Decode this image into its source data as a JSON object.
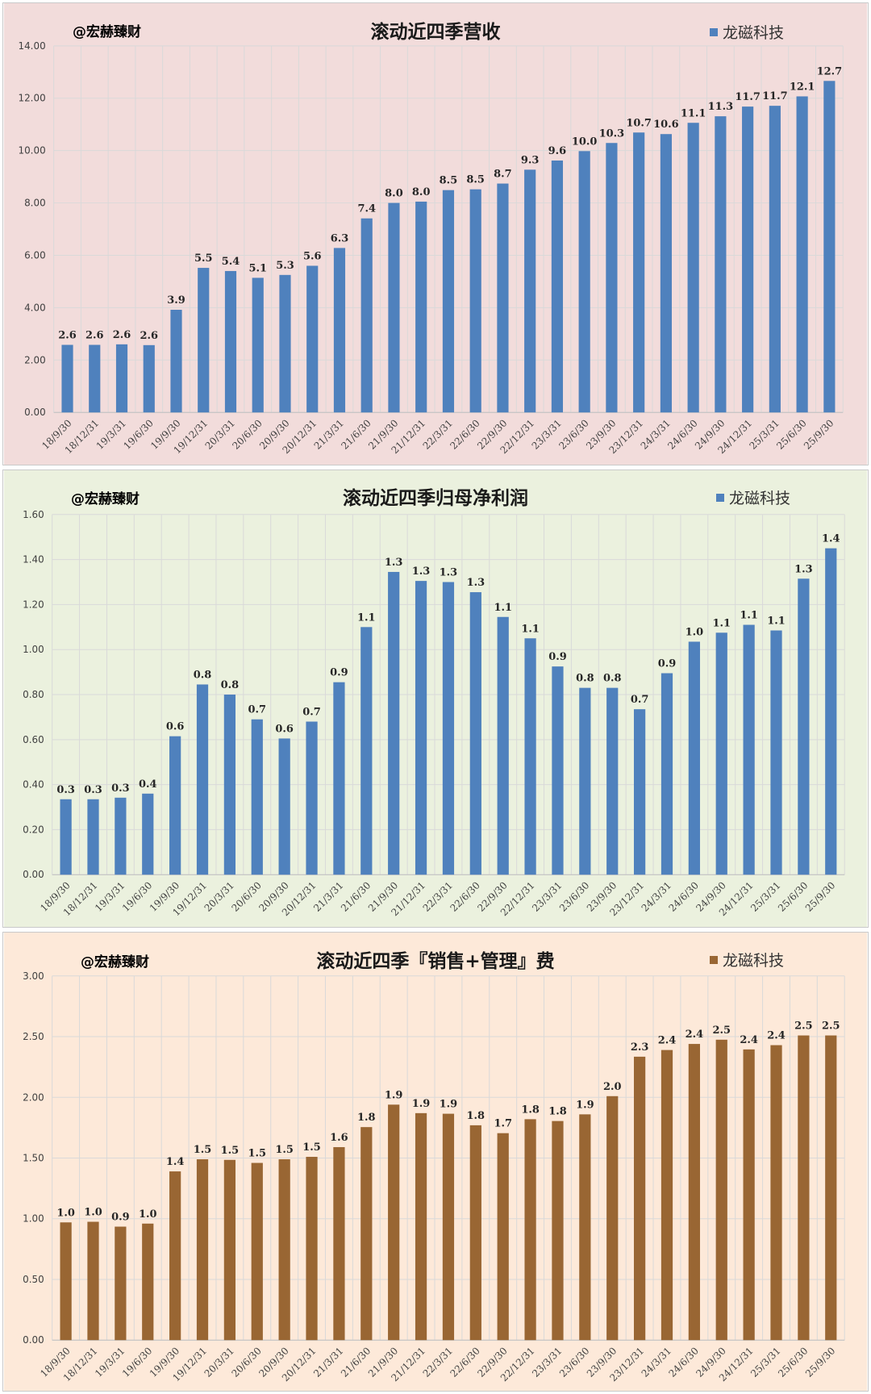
{
  "watermark": "@宏赫臻财",
  "colors": {
    "panel1_bg": "#f2dcdb",
    "panel2_bg": "#ebf1de",
    "panel3_bg": "#fde9d9",
    "blue": "#4f81bd",
    "brown": "#996633",
    "watermark": "#2f7d32",
    "grid": "#d9d9d9"
  },
  "chart_data": [
    {
      "type": "bar",
      "title": "滚动近四季营收",
      "legend": "龙磁科技",
      "categories": [
        "18/9/30",
        "18/12/31",
        "19/3/31",
        "19/6/30",
        "19/9/30",
        "19/12/31",
        "20/3/31",
        "20/6/30",
        "20/9/30",
        "20/12/31",
        "21/3/31",
        "21/6/30",
        "21/9/30",
        "21/12/31",
        "22/3/31",
        "22/6/30",
        "22/9/30",
        "22/12/31",
        "23/3/31",
        "23/6/30",
        "23/9/30",
        "23/12/31",
        "24/3/31",
        "24/6/30",
        "24/9/30",
        "24/12/31",
        "25/3/31",
        "25/6/30",
        "25/9/30"
      ],
      "values": [
        2.58,
        2.58,
        2.6,
        2.57,
        3.92,
        5.52,
        5.4,
        5.14,
        5.25,
        5.6,
        6.28,
        7.41,
        8.0,
        8.05,
        8.49,
        8.52,
        8.74,
        9.27,
        9.62,
        9.98,
        10.29,
        10.69,
        10.63,
        11.06,
        11.31,
        11.68,
        11.71,
        12.07,
        12.66
      ],
      "labels": [
        "2.6",
        "2.6",
        "2.6",
        "2.6",
        "3.9",
        "5.5",
        "5.4",
        "5.1",
        "5.3",
        "5.6",
        "6.3",
        "7.4",
        "8.0",
        "8.0",
        "8.5",
        "8.5",
        "8.7",
        "9.3",
        "9.6",
        "10.0",
        "10.3",
        "10.7",
        "10.6",
        "11.1",
        "11.3",
        "11.7",
        "11.7",
        "12.1",
        "12.7"
      ],
      "ylim": [
        0,
        14
      ],
      "yticks": [
        "0.00",
        "2.00",
        "4.00",
        "6.00",
        "8.00",
        "10.00",
        "12.00",
        "14.00"
      ],
      "grid": true,
      "legend_position": "top-right"
    },
    {
      "type": "bar",
      "title": "滚动近四季归母净利润",
      "legend": "龙磁科技",
      "categories": [
        "18/9/30",
        "18/12/31",
        "19/3/31",
        "19/6/30",
        "19/9/30",
        "19/12/31",
        "20/3/31",
        "20/6/30",
        "20/9/30",
        "20/12/31",
        "21/3/31",
        "21/6/30",
        "21/9/30",
        "21/12/31",
        "22/3/31",
        "22/6/30",
        "22/9/30",
        "22/12/31",
        "23/3/31",
        "23/6/30",
        "23/9/30",
        "23/12/31",
        "24/3/31",
        "24/6/30",
        "24/9/30",
        "24/12/31",
        "25/3/31",
        "25/6/30",
        "25/9/30"
      ],
      "values": [
        0.335,
        0.335,
        0.342,
        0.36,
        0.615,
        0.845,
        0.8,
        0.69,
        0.605,
        0.68,
        0.855,
        1.1,
        1.345,
        1.305,
        1.3,
        1.255,
        1.145,
        1.05,
        0.925,
        0.83,
        0.83,
        0.735,
        0.895,
        1.035,
        1.075,
        1.11,
        1.085,
        1.315,
        1.45
      ],
      "labels": [
        "0.3",
        "0.3",
        "0.3",
        "0.4",
        "0.6",
        "0.8",
        "0.8",
        "0.7",
        "0.6",
        "0.7",
        "0.9",
        "1.1",
        "1.3",
        "1.3",
        "1.3",
        "1.3",
        "1.1",
        "1.1",
        "0.9",
        "0.8",
        "0.8",
        "0.7",
        "0.9",
        "1.0",
        "1.1",
        "1.1",
        "1.1",
        "1.3",
        "1.4"
      ],
      "ylim": [
        0,
        1.6
      ],
      "yticks": [
        "0.00",
        "0.20",
        "0.40",
        "0.60",
        "0.80",
        "1.00",
        "1.20",
        "1.40",
        "1.60"
      ],
      "grid": true,
      "legend_position": "top-right"
    },
    {
      "type": "bar",
      "title": "滚动近四季『销售+管理』费",
      "legend": "龙磁科技",
      "categories": [
        "18/9/30",
        "18/12/31",
        "19/3/31",
        "19/6/30",
        "19/9/30",
        "19/12/31",
        "20/3/31",
        "20/6/30",
        "20/9/30",
        "20/12/31",
        "21/3/31",
        "21/6/30",
        "21/9/30",
        "21/12/31",
        "22/3/31",
        "22/6/30",
        "22/9/30",
        "22/12/31",
        "23/3/31",
        "23/6/30",
        "23/9/30",
        "23/12/31",
        "24/3/31",
        "24/6/30",
        "24/9/30",
        "24/12/31",
        "25/3/31",
        "25/6/30",
        "25/9/30"
      ],
      "values": [
        0.97,
        0.975,
        0.935,
        0.96,
        1.39,
        1.49,
        1.485,
        1.46,
        1.49,
        1.51,
        1.59,
        1.755,
        1.94,
        1.87,
        1.865,
        1.77,
        1.705,
        1.82,
        1.805,
        1.86,
        2.01,
        2.335,
        2.39,
        2.44,
        2.475,
        2.395,
        2.43,
        2.51,
        2.51
      ],
      "labels": [
        "1.0",
        "1.0",
        "0.9",
        "1.0",
        "1.4",
        "1.5",
        "1.5",
        "1.5",
        "1.5",
        "1.5",
        "1.6",
        "1.8",
        "1.9",
        "1.9",
        "1.9",
        "1.8",
        "1.7",
        "1.8",
        "1.8",
        "1.9",
        "2.0",
        "2.3",
        "2.4",
        "2.4",
        "2.5",
        "2.4",
        "2.4",
        "2.5",
        "2.5"
      ],
      "ylim": [
        0,
        3
      ],
      "yticks": [
        "0.00",
        "0.50",
        "1.00",
        "1.50",
        "2.00",
        "2.50",
        "3.00"
      ],
      "grid": true,
      "legend_position": "top-right"
    }
  ]
}
